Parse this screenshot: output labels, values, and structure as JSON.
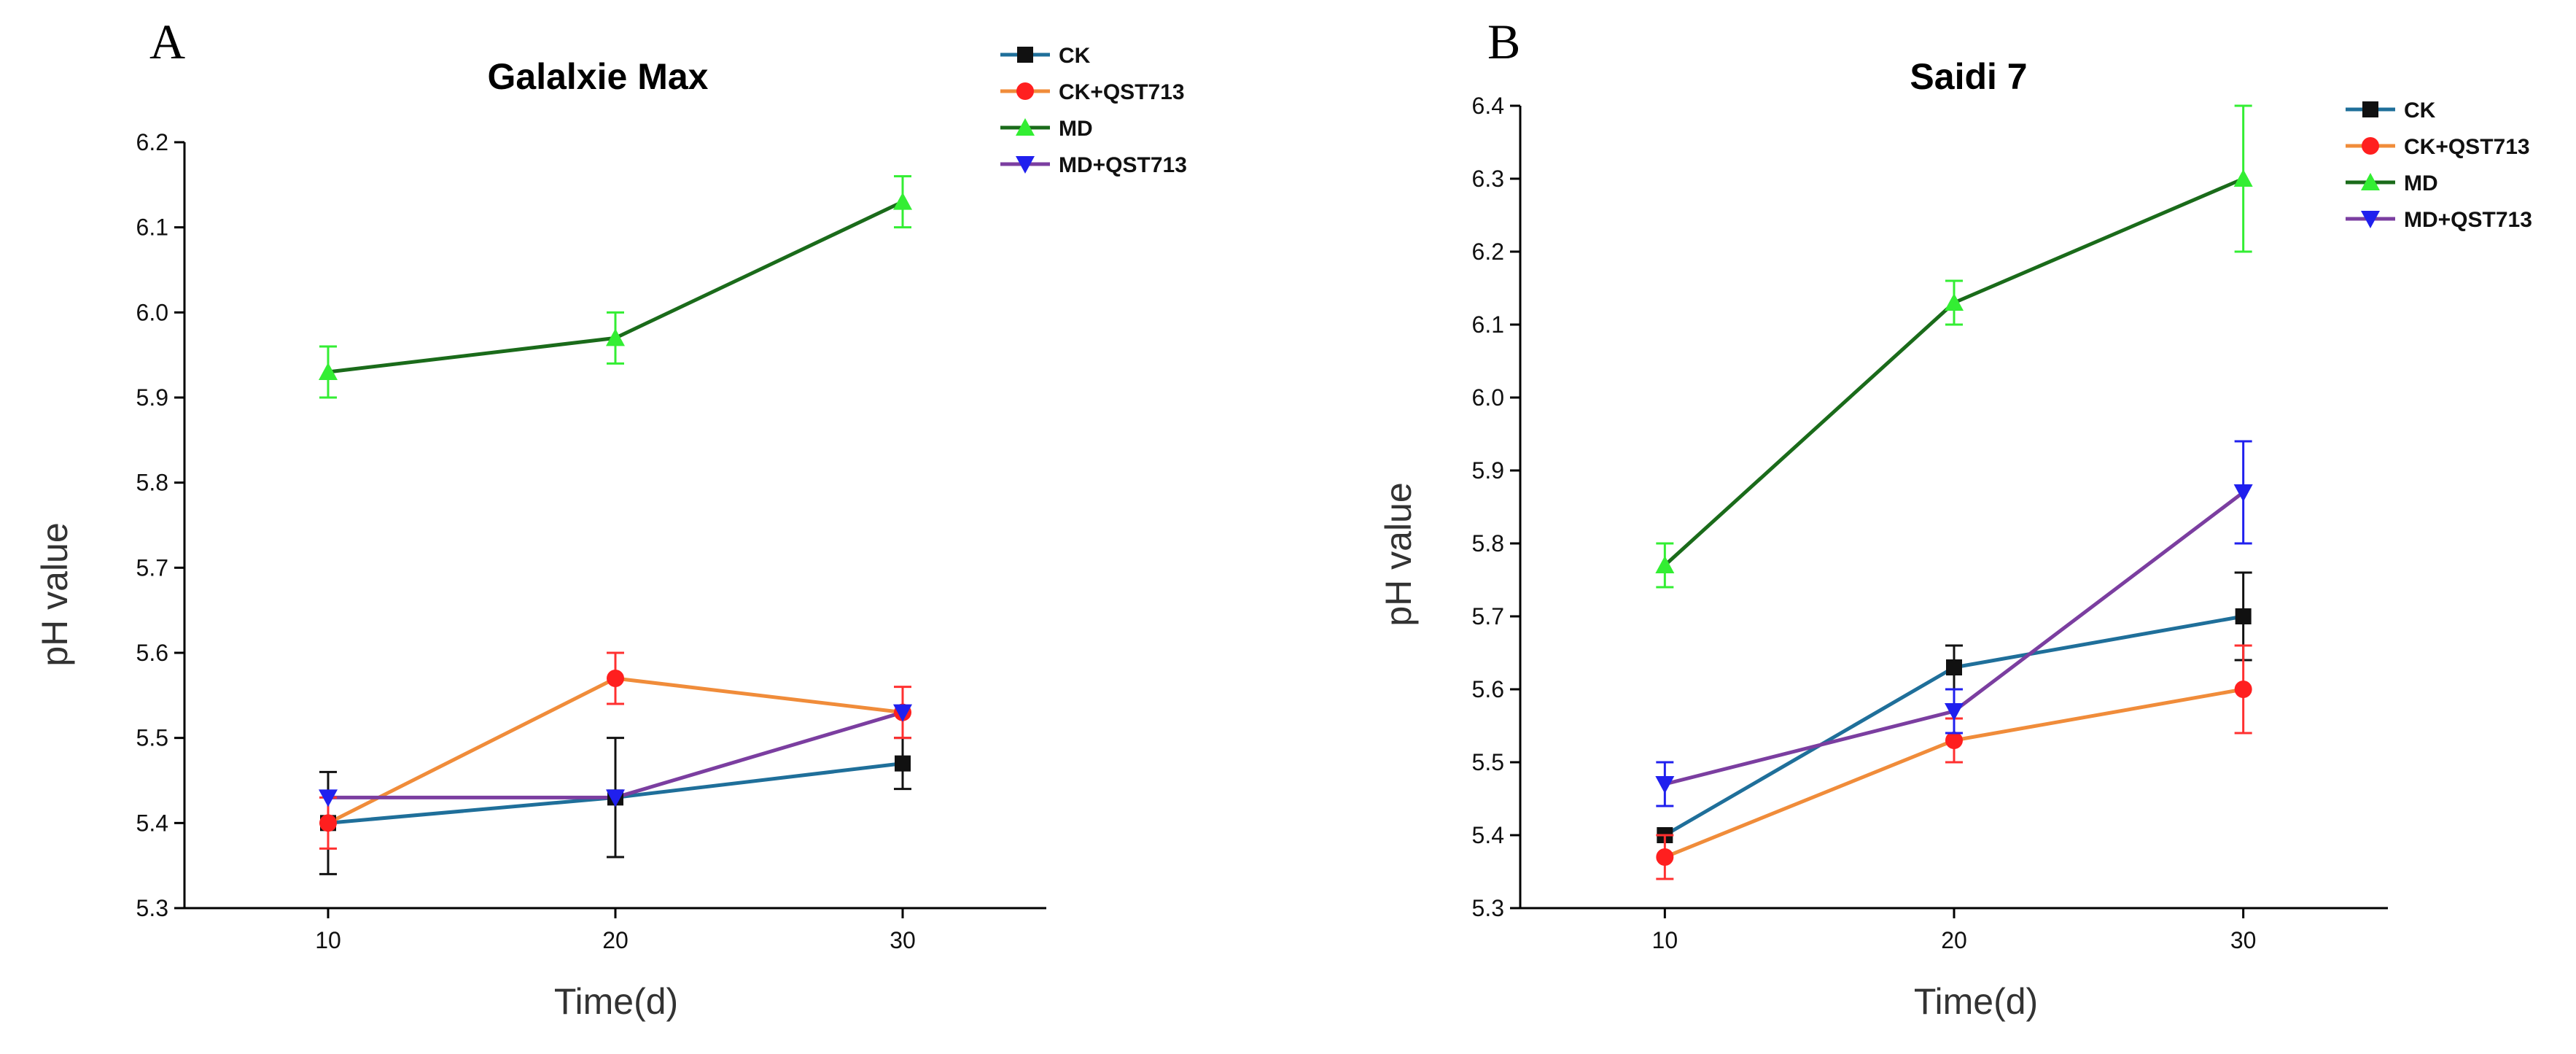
{
  "chart_data": [
    {
      "panel": "A",
      "type": "line",
      "title": "Galalxie Max",
      "xlabel": "Time(d)",
      "ylabel": "pH value",
      "x": [
        10,
        20,
        30
      ],
      "xlim": [
        5,
        35
      ],
      "ylim": [
        5.3,
        6.2
      ],
      "xticks": [
        "10",
        "20",
        "30"
      ],
      "yticks": [
        "5.3",
        "5.4",
        "5.5",
        "5.6",
        "5.7",
        "5.8",
        "5.9",
        "6.0",
        "6.1",
        "6.2"
      ],
      "grid": false,
      "legend_position": "top-right",
      "series": [
        {
          "name": "CK",
          "values": [
            5.4,
            5.43,
            5.47
          ],
          "errors": [
            0.06,
            0.07,
            0.03
          ],
          "line_color": "#1f6f9a",
          "marker_color": "#111111",
          "error_color": "#111111",
          "marker": "square"
        },
        {
          "name": "CK+QST713",
          "values": [
            5.4,
            5.57,
            5.53
          ],
          "errors": [
            0.03,
            0.03,
            0.03
          ],
          "line_color": "#f08c3a",
          "marker_color": "#ff1f1f",
          "error_color": "#ff3030",
          "marker": "circle"
        },
        {
          "name": "MD",
          "values": [
            5.93,
            5.97,
            6.13
          ],
          "errors": [
            0.03,
            0.03,
            0.03
          ],
          "line_color": "#1a6b1a",
          "marker_color": "#33ee33",
          "error_color": "#33ee33",
          "marker": "triangle-up"
        },
        {
          "name": "MD+QST713",
          "values": [
            5.43,
            5.43,
            5.53
          ],
          "errors": [
            0.0,
            0.0,
            0.0
          ],
          "line_color": "#7b3ea0",
          "marker_color": "#2020ee",
          "error_color": "#2020ee",
          "marker": "triangle-down"
        }
      ]
    },
    {
      "panel": "B",
      "type": "line",
      "title": "Saidi 7",
      "xlabel": "Time(d)",
      "ylabel": "pH value",
      "x": [
        10,
        20,
        30
      ],
      "xlim": [
        5,
        35
      ],
      "ylim": [
        5.3,
        6.4
      ],
      "xticks": [
        "10",
        "20",
        "30"
      ],
      "yticks": [
        "5.3",
        "5.4",
        "5.5",
        "5.6",
        "5.7",
        "5.8",
        "5.9",
        "6.0",
        "6.1",
        "6.2",
        "6.3",
        "6.4"
      ],
      "grid": false,
      "legend_position": "top-right",
      "series": [
        {
          "name": "CK",
          "values": [
            5.4,
            5.63,
            5.7
          ],
          "errors": [
            0.0,
            0.03,
            0.06
          ],
          "line_color": "#1f6f9a",
          "marker_color": "#111111",
          "error_color": "#111111",
          "marker": "square"
        },
        {
          "name": "CK+QST713",
          "values": [
            5.37,
            5.53,
            5.6
          ],
          "errors": [
            0.03,
            0.03,
            0.06
          ],
          "line_color": "#f08c3a",
          "marker_color": "#ff1f1f",
          "error_color": "#ff3030",
          "marker": "circle"
        },
        {
          "name": "MD",
          "values": [
            5.77,
            6.13,
            6.3
          ],
          "errors": [
            0.03,
            0.03,
            0.1
          ],
          "line_color": "#1a6b1a",
          "marker_color": "#33ee33",
          "error_color": "#33ee33",
          "marker": "triangle-up"
        },
        {
          "name": "MD+QST713",
          "values": [
            5.47,
            5.57,
            5.87
          ],
          "errors": [
            0.03,
            0.03,
            0.07
          ],
          "line_color": "#7b3ea0",
          "marker_color": "#2020ee",
          "error_color": "#2020ee",
          "marker": "triangle-down"
        }
      ]
    }
  ]
}
